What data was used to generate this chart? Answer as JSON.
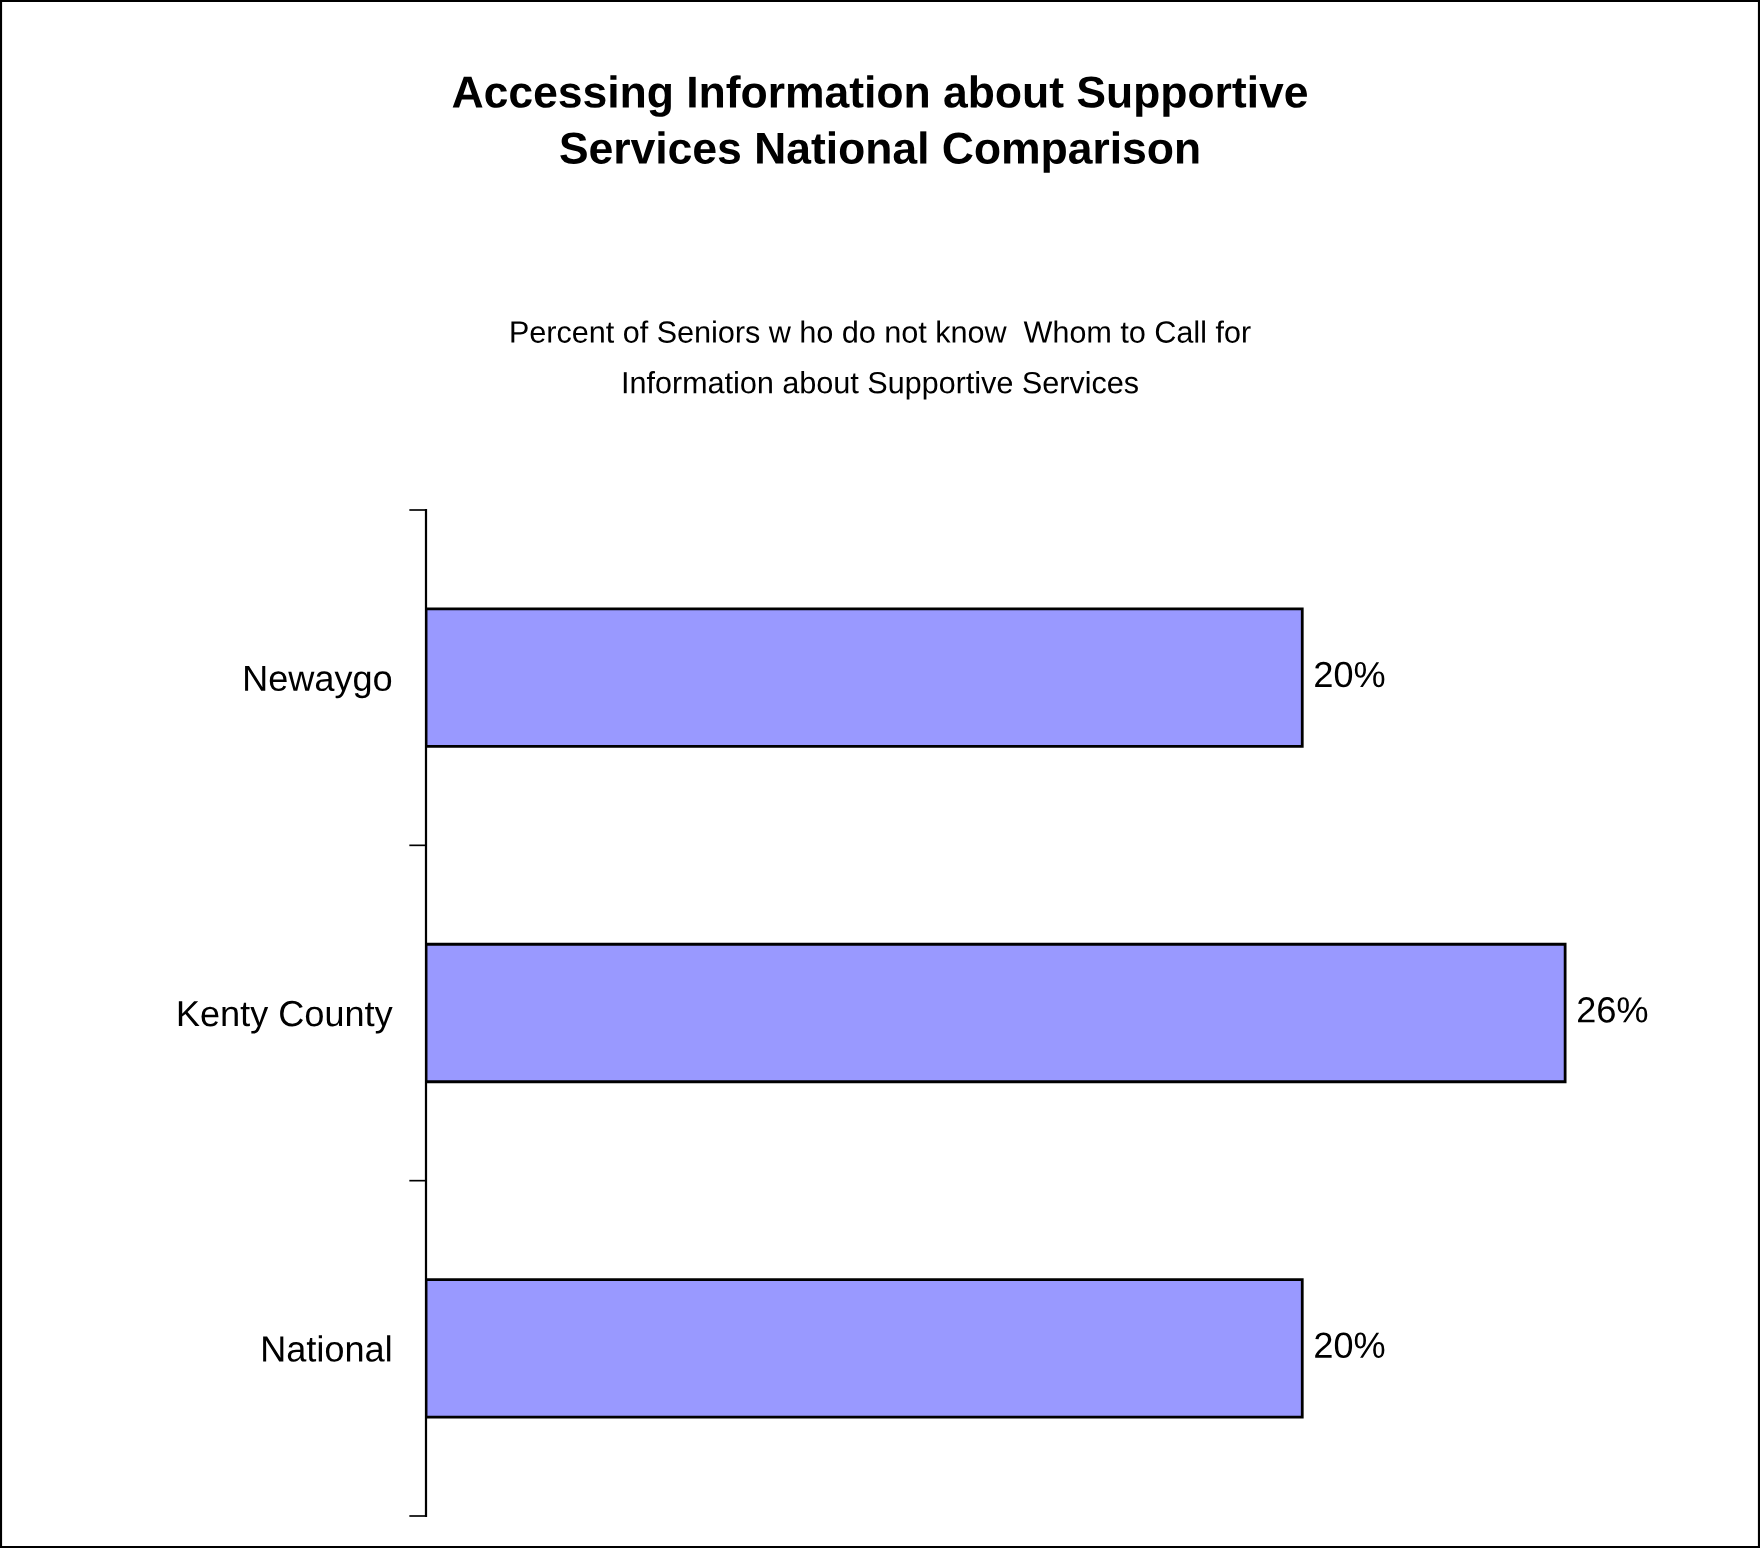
{
  "chart_data": {
    "type": "bar",
    "orientation": "horizontal",
    "title": "Accessing Information about Supportive\nServices National Comparison",
    "subtitle": "Percent of Seniors w ho do not know  Whom to Call for\nInformation about Supportive Services",
    "categories": [
      "Newaygo",
      "Kenty County",
      "National"
    ],
    "values": [
      20,
      26,
      20
    ],
    "value_labels": [
      "20%",
      "26%",
      "20%"
    ],
    "color": "#9999ff",
    "grid": false,
    "legend": false
  }
}
